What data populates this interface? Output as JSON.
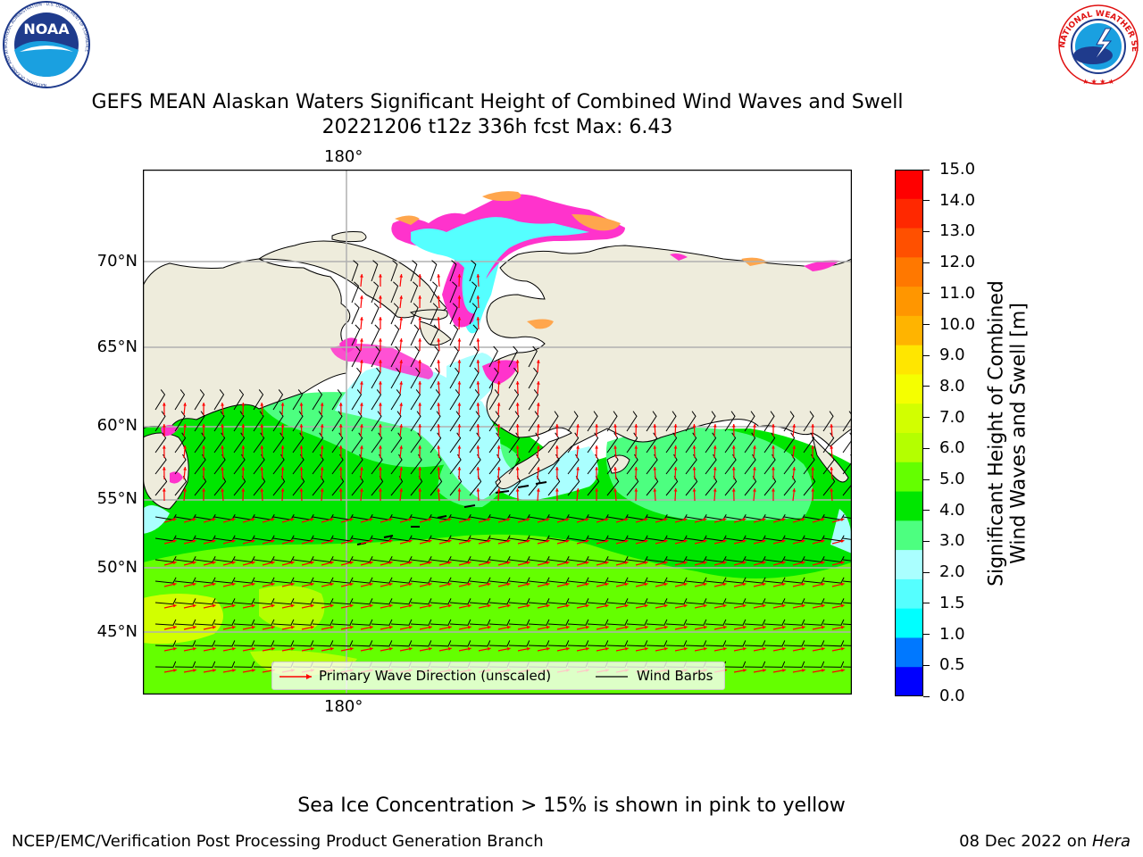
{
  "header": {
    "title_line1": "GEFS MEAN Alaskan Waters Significant Height of Combined Wind Waves and Swell",
    "title_line2": "20221206 t12z 336h fcst    Max: 6.43"
  },
  "logos": {
    "noaa_text": "NOAA",
    "noaa_ring": "NATIONAL OCEANIC AND ATMOSPHERIC ADMINISTRATION · U.S. DEPARTMENT OF COMMERCE",
    "nws_ring": "NATIONAL WEATHER SERVICE"
  },
  "map": {
    "lon_label_top": "180°",
    "lon_label_bottom": "180°",
    "lat_labels": [
      "70°N",
      "65°N",
      "60°N",
      "55°N",
      "50°N",
      "45°N"
    ],
    "grid": true,
    "colors": {
      "land": "#eeecdc",
      "ice_pink": "#ff33cc",
      "ice_orange": "#ffa64d",
      "wave_arrow": "#ff0000",
      "wind_barb": "#000000"
    }
  },
  "legend": {
    "wave_label": "Primary Wave Direction (unscaled)",
    "wind_label": "Wind Barbs"
  },
  "colorbar": {
    "title_line1": "Significant Height of Combined",
    "title_line2": "Wind Waves and Swell [m]",
    "ticks": [
      "15.0",
      "14.0",
      "13.0",
      "12.0",
      "11.0",
      "10.0",
      "9.0",
      "8.0",
      "7.0",
      "6.0",
      "5.0",
      "4.0",
      "3.0",
      "2.0",
      "1.5",
      "1.0",
      "0.5",
      "0.0"
    ],
    "colors_top_to_bottom": [
      "#ff0000",
      "#ff2800",
      "#ff5000",
      "#ff7800",
      "#ff9600",
      "#ffb400",
      "#ffe600",
      "#f5ff00",
      "#d2ff00",
      "#b4ff00",
      "#64ff00",
      "#00e600",
      "#4dff80",
      "#aaffff",
      "#55ffff",
      "#00ffff",
      "#0078ff",
      "#0000ff"
    ]
  },
  "chart_data": {
    "type": "heatmap",
    "title": "GEFS MEAN Alaskan Waters Significant Height of Combined Wind Waves and Swell",
    "subtitle": "20221206 t12z 336h fcst    Max: 6.43",
    "colorbar_label": "Significant Height of Combined Wind Waves and Swell [m]",
    "colorbar_range": [
      0.0,
      15.0
    ],
    "max_value": 6.43,
    "latitude_ticks": [
      "70°N",
      "65°N",
      "60°N",
      "55°N",
      "50°N",
      "45°N"
    ],
    "longitude_ticks": [
      "180°"
    ]
  },
  "footer": {
    "note": "Sea Ice Concentration > 15% is shown in pink to yellow",
    "left": "NCEP/EMC/Verification Post Processing Product Generation Branch",
    "right_date": "08 Dec 2022 on ",
    "right_host": "Hera"
  }
}
